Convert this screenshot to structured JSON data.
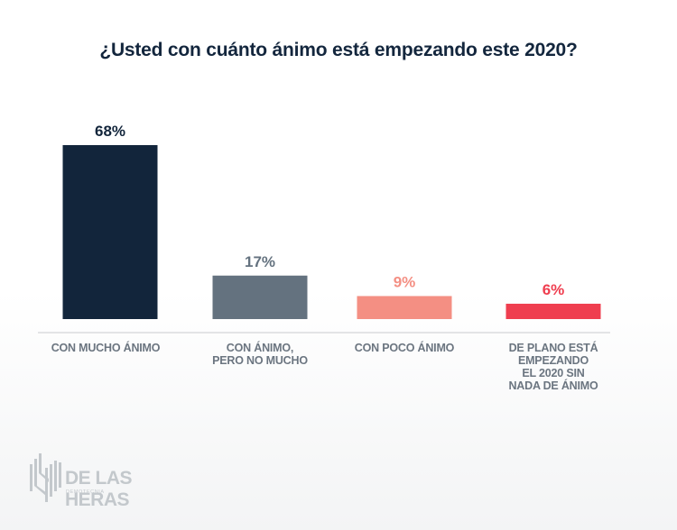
{
  "chart_data": {
    "type": "bar",
    "title": "¿Usted con cuánto ánimo está empezando este 2020?",
    "categories": [
      "CON MUCHO ÁNIMO",
      "CON ÁNIMO, PERO NO MUCHO",
      "CON POCO ÁNIMO",
      "DE PLANO ESTÁ EMPEZANDO EL 2020 SIN NADA DE ÁNIMO"
    ],
    "category_lines": [
      [
        "CON MUCHO ÁNIMO"
      ],
      [
        "CON ÁNIMO,",
        "PERO NO MUCHO"
      ],
      [
        "CON POCO ÁNIMO"
      ],
      [
        "DE PLANO ESTÁ",
        "EMPEZANDO",
        "EL 2020 SIN",
        "NADA DE ÁNIMO"
      ]
    ],
    "values": [
      68,
      17,
      9,
      6
    ],
    "value_labels": [
      "68%",
      "17%",
      "9%",
      "6%"
    ],
    "colors": [
      "#12253b",
      "#64727f",
      "#f48f83",
      "#ef3e4f"
    ],
    "label_colors": [
      "#12253b",
      "#64727f",
      "#f48f83",
      "#ef3e4f"
    ],
    "unit": "%",
    "xlabel": "",
    "ylabel": "",
    "ylim": [
      0,
      68
    ],
    "grid": false,
    "legend": "none"
  },
  "branding": {
    "name": "DE LAS HERAS",
    "subtitle": "DEMOTECNIA"
  }
}
